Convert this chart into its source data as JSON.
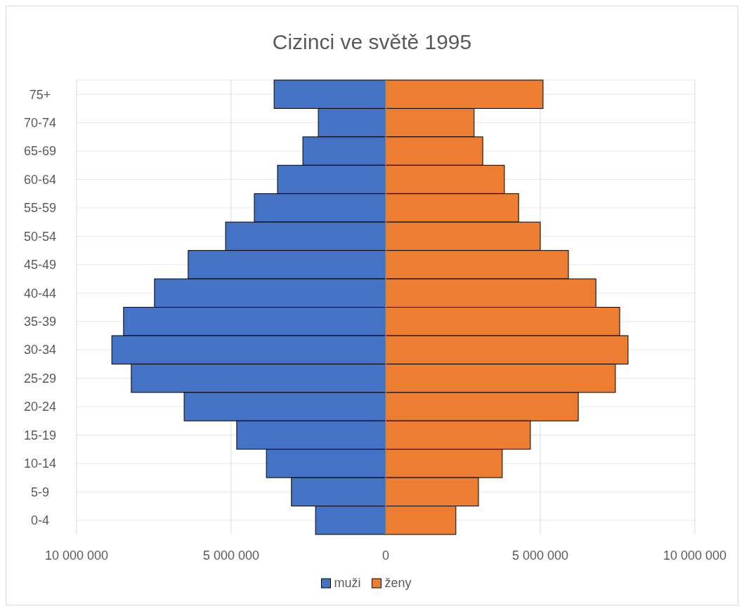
{
  "chart_data": {
    "type": "bar",
    "title": "Cizinci ve světě 1995",
    "orientation": "horizontal",
    "stacked": true,
    "categories": [
      "75+",
      "70-74",
      "65-69",
      "60-64",
      "55-59",
      "50-54",
      "45-49",
      "40-44",
      "35-39",
      "30-34",
      "25-29",
      "20-24",
      "15-19",
      "10-14",
      "5-9",
      "0-4"
    ],
    "series": [
      {
        "name": "muži",
        "color": "#4472c4",
        "values": [
          -3610000,
          -2180000,
          -2680000,
          -3500000,
          -4250000,
          -5180000,
          -6390000,
          -7480000,
          -8480000,
          -8860000,
          -8230000,
          -6520000,
          -4820000,
          -3860000,
          -3050000,
          -2270000
        ]
      },
      {
        "name": "ženy",
        "color": "#ed7d31",
        "values": [
          5090000,
          2860000,
          3140000,
          3840000,
          4300000,
          5000000,
          5910000,
          6800000,
          7570000,
          7840000,
          7430000,
          6230000,
          4680000,
          3770000,
          3000000,
          2270000
        ]
      }
    ],
    "xlim": [
      -10000000,
      10000000
    ],
    "xticks": [
      {
        "value": -10000000,
        "label": "10 000 000"
      },
      {
        "value": -5000000,
        "label": "5 000 000"
      },
      0,
      {
        "value": 5000000,
        "label": "5 000 000"
      },
      {
        "value": 10000000,
        "label": "10 000 000"
      }
    ],
    "grid": true,
    "legend": "bottom"
  }
}
